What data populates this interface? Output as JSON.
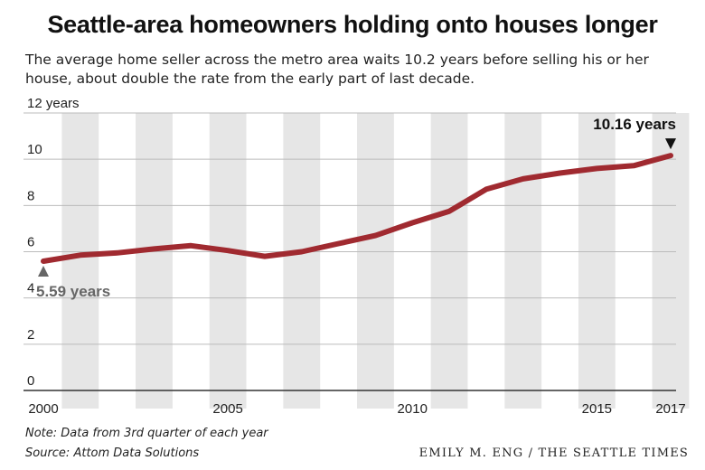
{
  "title": "Seattle-area homeowners holding onto houses longer",
  "subtitle": "The average home seller across the metro area waits 10.2 years before selling his or her house, about double the rate from the early part of last decade.",
  "note": "Note: Data from 3rd quarter of each year",
  "source": "Source: Attom Data Solutions",
  "credit": "EMILY M. ENG / THE SEATTLE TIMES",
  "colors": {
    "line": "#a02a30",
    "band": "#e6e6e6",
    "axis": "#333333",
    "grid": "#bbbbbb",
    "start_label": "#666666",
    "end_label": "#111111"
  },
  "chart_data": {
    "type": "line",
    "x": [
      2000,
      2001,
      2002,
      2003,
      2004,
      2005,
      2006,
      2007,
      2008,
      2009,
      2010,
      2011,
      2012,
      2013,
      2014,
      2015,
      2016,
      2017
    ],
    "values": [
      5.59,
      5.85,
      5.95,
      6.12,
      6.26,
      6.05,
      5.8,
      6.0,
      6.35,
      6.7,
      7.25,
      7.75,
      8.7,
      9.15,
      9.4,
      9.6,
      9.72,
      10.16
    ],
    "xlim": [
      2000,
      2017
    ],
    "ylim": [
      0,
      12
    ],
    "y_ticks": [
      0,
      2,
      4,
      6,
      8,
      10,
      12
    ],
    "y_tick_labels": [
      "0",
      "2",
      "4",
      "6",
      "8",
      "10",
      "12 years"
    ],
    "x_tick_labels": [
      {
        "year": 2000,
        "label": "2000"
      },
      {
        "year": 2005,
        "label": "2005"
      },
      {
        "year": 2010,
        "label": "2010"
      },
      {
        "year": 2015,
        "label": "2015"
      },
      {
        "year": 2017,
        "label": "2017"
      }
    ],
    "banded_years": [
      2001,
      2003,
      2005,
      2007,
      2009,
      2011,
      2013,
      2015,
      2017
    ],
    "annotations": [
      {
        "year": 2000,
        "value": 5.59,
        "text": "5.59 years",
        "position": "below"
      },
      {
        "year": 2017,
        "value": 10.16,
        "text": "10.16 years",
        "position": "above"
      }
    ],
    "grid": true,
    "legend": "none"
  }
}
